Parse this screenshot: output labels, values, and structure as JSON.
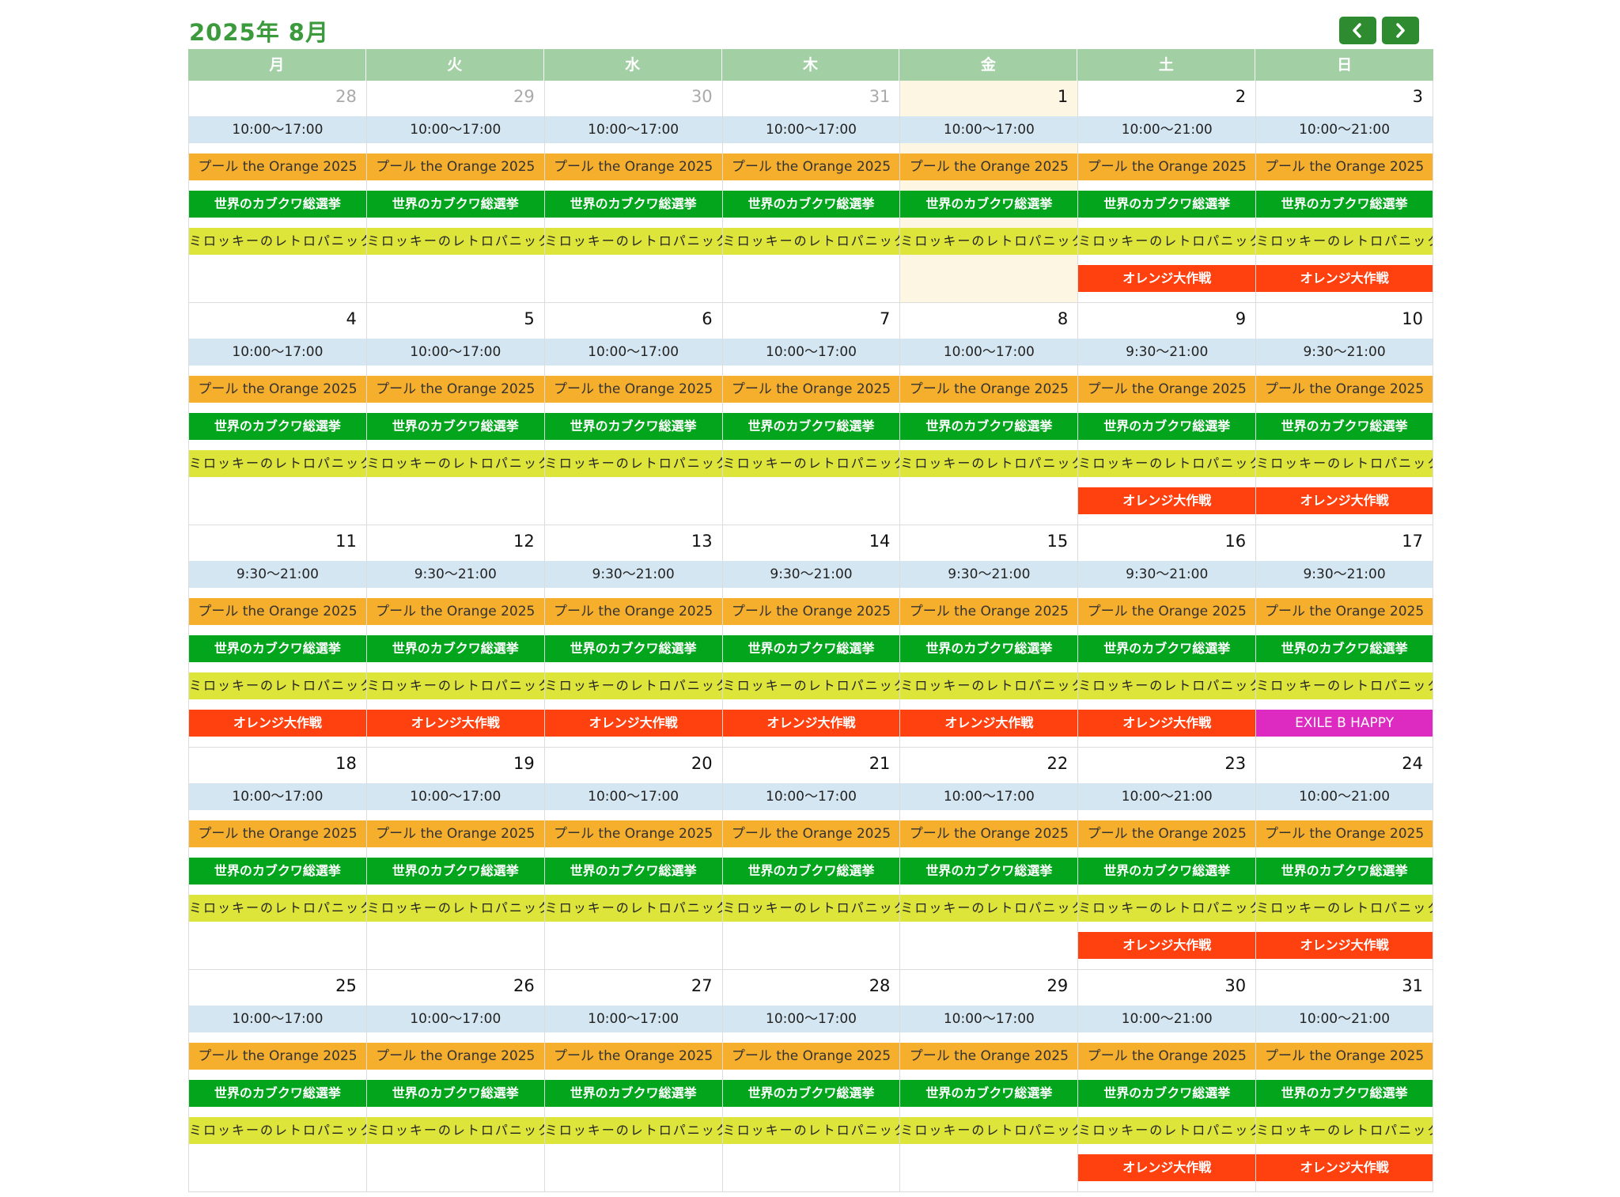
{
  "header": {
    "title": "2025年 8月",
    "prev_icon": "chevron-left-icon",
    "next_icon": "chevron-right-icon"
  },
  "weekdays": [
    "月",
    "火",
    "水",
    "木",
    "金",
    "土",
    "日"
  ],
  "colors": {
    "title": "#3a9a3c",
    "nav": "#2e8b2f",
    "weekday_header": "#a2cfa4",
    "hours": "#d4e6f1",
    "pool": "#f6ae2d",
    "kabukuwa": "#02a51c",
    "mirokki": "#dde43a",
    "orange_daisakusen": "#ff4110",
    "exile": "#dd2ac0",
    "today": "#fdf6e3"
  },
  "weeks": [
    {
      "days": [
        {
          "day": "28",
          "other_month": true,
          "hours": "10:00〜17:00",
          "events": [
            "プール the Orange 2025",
            "世界のカブクワ総選挙",
            "ミロッキーのレトロパニック"
          ]
        },
        {
          "day": "29",
          "other_month": true,
          "hours": "10:00〜17:00",
          "events": [
            "プール the Orange 2025",
            "世界のカブクワ総選挙",
            "ミロッキーのレトロパニック"
          ]
        },
        {
          "day": "30",
          "other_month": true,
          "hours": "10:00〜17:00",
          "events": [
            "プール the Orange 2025",
            "世界のカブクワ総選挙",
            "ミロッキーのレトロパニック"
          ]
        },
        {
          "day": "31",
          "other_month": true,
          "hours": "10:00〜17:00",
          "events": [
            "プール the Orange 2025",
            "世界のカブクワ総選挙",
            "ミロッキーのレトロパニック"
          ]
        },
        {
          "day": "1",
          "today": true,
          "hours": "10:00〜17:00",
          "events": [
            "プール the Orange 2025",
            "世界のカブクワ総選挙",
            "ミロッキーのレトロパニック"
          ]
        },
        {
          "day": "2",
          "hours": "10:00〜21:00",
          "events": [
            "プール the Orange 2025",
            "世界のカブクワ総選挙",
            "ミロッキーのレトロパニック",
            "オレンジ大作戦"
          ]
        },
        {
          "day": "3",
          "hours": "10:00〜21:00",
          "events": [
            "プール the Orange 2025",
            "世界のカブクワ総選挙",
            "ミロッキーのレトロパニック",
            "オレンジ大作戦"
          ]
        }
      ]
    },
    {
      "days": [
        {
          "day": "4",
          "hours": "10:00〜17:00",
          "events": [
            "プール the Orange 2025",
            "世界のカブクワ総選挙",
            "ミロッキーのレトロパニック"
          ]
        },
        {
          "day": "5",
          "hours": "10:00〜17:00",
          "events": [
            "プール the Orange 2025",
            "世界のカブクワ総選挙",
            "ミロッキーのレトロパニック"
          ]
        },
        {
          "day": "6",
          "hours": "10:00〜17:00",
          "events": [
            "プール the Orange 2025",
            "世界のカブクワ総選挙",
            "ミロッキーのレトロパニック"
          ]
        },
        {
          "day": "7",
          "hours": "10:00〜17:00",
          "events": [
            "プール the Orange 2025",
            "世界のカブクワ総選挙",
            "ミロッキーのレトロパニック"
          ]
        },
        {
          "day": "8",
          "hours": "10:00〜17:00",
          "events": [
            "プール the Orange 2025",
            "世界のカブクワ総選挙",
            "ミロッキーのレトロパニック"
          ]
        },
        {
          "day": "9",
          "hours": "9:30〜21:00",
          "events": [
            "プール the Orange 2025",
            "世界のカブクワ総選挙",
            "ミロッキーのレトロパニック",
            "オレンジ大作戦"
          ]
        },
        {
          "day": "10",
          "hours": "9:30〜21:00",
          "events": [
            "プール the Orange 2025",
            "世界のカブクワ総選挙",
            "ミロッキーのレトロパニック",
            "オレンジ大作戦"
          ]
        }
      ]
    },
    {
      "days": [
        {
          "day": "11",
          "hours": "9:30〜21:00",
          "events": [
            "プール the Orange 2025",
            "世界のカブクワ総選挙",
            "ミロッキーのレトロパニック",
            "オレンジ大作戦"
          ]
        },
        {
          "day": "12",
          "hours": "9:30〜21:00",
          "events": [
            "プール the Orange 2025",
            "世界のカブクワ総選挙",
            "ミロッキーのレトロパニック",
            "オレンジ大作戦"
          ]
        },
        {
          "day": "13",
          "hours": "9:30〜21:00",
          "events": [
            "プール the Orange 2025",
            "世界のカブクワ総選挙",
            "ミロッキーのレトロパニック",
            "オレンジ大作戦"
          ]
        },
        {
          "day": "14",
          "hours": "9:30〜21:00",
          "events": [
            "プール the Orange 2025",
            "世界のカブクワ総選挙",
            "ミロッキーのレトロパニック",
            "オレンジ大作戦"
          ]
        },
        {
          "day": "15",
          "hours": "9:30〜21:00",
          "events": [
            "プール the Orange 2025",
            "世界のカブクワ総選挙",
            "ミロッキーのレトロパニック",
            "オレンジ大作戦"
          ]
        },
        {
          "day": "16",
          "hours": "9:30〜21:00",
          "events": [
            "プール the Orange 2025",
            "世界のカブクワ総選挙",
            "ミロッキーのレトロパニック",
            "オレンジ大作戦"
          ]
        },
        {
          "day": "17",
          "hours": "9:30〜21:00",
          "events": [
            "プール the Orange 2025",
            "世界のカブクワ総選挙",
            "ミロッキーのレトロパニック",
            "EXILE B HAPPY"
          ]
        }
      ]
    },
    {
      "days": [
        {
          "day": "18",
          "hours": "10:00〜17:00",
          "events": [
            "プール the Orange 2025",
            "世界のカブクワ総選挙",
            "ミロッキーのレトロパニック"
          ]
        },
        {
          "day": "19",
          "hours": "10:00〜17:00",
          "events": [
            "プール the Orange 2025",
            "世界のカブクワ総選挙",
            "ミロッキーのレトロパニック"
          ]
        },
        {
          "day": "20",
          "hours": "10:00〜17:00",
          "events": [
            "プール the Orange 2025",
            "世界のカブクワ総選挙",
            "ミロッキーのレトロパニック"
          ]
        },
        {
          "day": "21",
          "hours": "10:00〜17:00",
          "events": [
            "プール the Orange 2025",
            "世界のカブクワ総選挙",
            "ミロッキーのレトロパニック"
          ]
        },
        {
          "day": "22",
          "hours": "10:00〜17:00",
          "events": [
            "プール the Orange 2025",
            "世界のカブクワ総選挙",
            "ミロッキーのレトロパニック"
          ]
        },
        {
          "day": "23",
          "hours": "10:00〜21:00",
          "events": [
            "プール the Orange 2025",
            "世界のカブクワ総選挙",
            "ミロッキーのレトロパニック",
            "オレンジ大作戦"
          ]
        },
        {
          "day": "24",
          "hours": "10:00〜21:00",
          "events": [
            "プール the Orange 2025",
            "世界のカブクワ総選挙",
            "ミロッキーのレトロパニック",
            "オレンジ大作戦"
          ]
        }
      ]
    },
    {
      "days": [
        {
          "day": "25",
          "hours": "10:00〜17:00",
          "events": [
            "プール the Orange 2025",
            "世界のカブクワ総選挙",
            "ミロッキーのレトロパニック"
          ]
        },
        {
          "day": "26",
          "hours": "10:00〜17:00",
          "events": [
            "プール the Orange 2025",
            "世界のカブクワ総選挙",
            "ミロッキーのレトロパニック"
          ]
        },
        {
          "day": "27",
          "hours": "10:00〜17:00",
          "events": [
            "プール the Orange 2025",
            "世界のカブクワ総選挙",
            "ミロッキーのレトロパニック"
          ]
        },
        {
          "day": "28",
          "hours": "10:00〜17:00",
          "events": [
            "プール the Orange 2025",
            "世界のカブクワ総選挙",
            "ミロッキーのレトロパニック"
          ]
        },
        {
          "day": "29",
          "hours": "10:00〜17:00",
          "events": [
            "プール the Orange 2025",
            "世界のカブクワ総選挙",
            "ミロッキーのレトロパニック"
          ]
        },
        {
          "day": "30",
          "hours": "10:00〜21:00",
          "events": [
            "プール the Orange 2025",
            "世界のカブクワ総選挙",
            "ミロッキーのレトロパニック",
            "オレンジ大作戦"
          ]
        },
        {
          "day": "31",
          "hours": "10:00〜21:00",
          "events": [
            "プール the Orange 2025",
            "世界のカブクワ総選挙",
            "ミロッキーのレトロパニック",
            "オレンジ大作戦"
          ]
        }
      ]
    }
  ]
}
